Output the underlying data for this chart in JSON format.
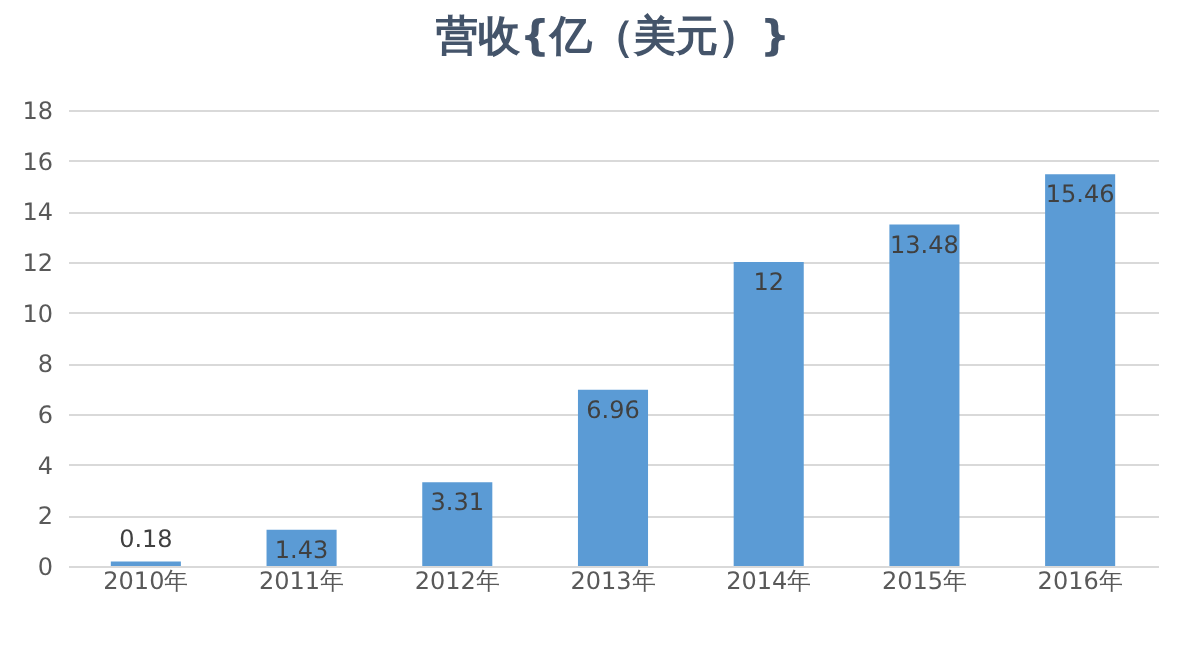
{
  "chart_data": {
    "type": "bar",
    "title": "营收{亿（美元）}",
    "categories": [
      "2010年",
      "2011年",
      "2012年",
      "2013年",
      "2014年",
      "2015年",
      "2016年"
    ],
    "values": [
      0.18,
      1.43,
      3.31,
      6.96,
      12,
      13.48,
      15.46
    ],
    "color": "#5b9bd5",
    "data_labels": true,
    "grid": "y",
    "ylim": [
      0,
      18
    ],
    "yticks": [
      0,
      2,
      4,
      6,
      8,
      10,
      12,
      14,
      16,
      18
    ]
  }
}
